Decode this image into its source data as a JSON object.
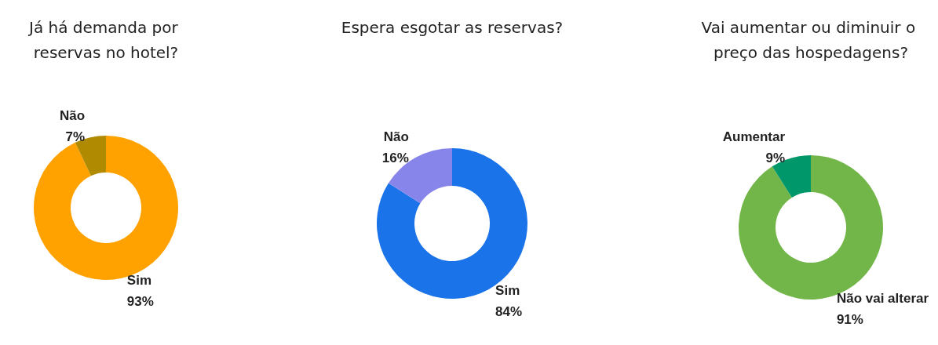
{
  "chart_data": [
    {
      "type": "donut",
      "title": "Já há demanda por reservas no hotel?",
      "categories": [
        "Sim",
        "Não"
      ],
      "values": [
        93,
        7
      ],
      "value_labels": [
        "93%",
        "7%"
      ],
      "colors": [
        "#ffa200",
        "#b08a00"
      ]
    },
    {
      "type": "donut",
      "title": "Espera esgotar as reservas?",
      "categories": [
        "Sim",
        "Não"
      ],
      "values": [
        84,
        16
      ],
      "value_labels": [
        "84%",
        "16%"
      ],
      "colors": [
        "#1a73e8",
        "#8885ea"
      ]
    },
    {
      "type": "donut",
      "title": "Vai aumentar ou diminuir o preço das hospedagens?",
      "categories": [
        "Não vai alterar",
        "Aumentar"
      ],
      "values": [
        91,
        9
      ],
      "value_labels": [
        "91%",
        "9%"
      ],
      "colors": [
        "#72b64a",
        "#00976a"
      ]
    }
  ]
}
